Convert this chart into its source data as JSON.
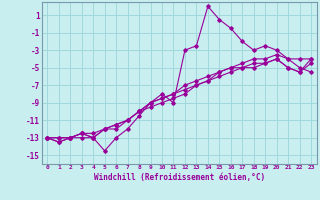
{
  "xlabel": "Windchill (Refroidissement éolien,°C)",
  "background_color": "#c8eef0",
  "grid_color": "#a0d8dc",
  "line_color": "#990099",
  "spine_color": "#7799aa",
  "xlim": [
    -0.5,
    23.5
  ],
  "ylim": [
    -16,
    2.5
  ],
  "yticks": [
    1,
    -1,
    -3,
    -5,
    -7,
    -9,
    -11,
    -13,
    -15
  ],
  "xticks": [
    0,
    1,
    2,
    3,
    4,
    5,
    6,
    7,
    8,
    9,
    10,
    11,
    12,
    13,
    14,
    15,
    16,
    17,
    18,
    19,
    20,
    21,
    22,
    23
  ],
  "series": [
    [
      0,
      1,
      2,
      3,
      4,
      5,
      6,
      7,
      8,
      9,
      10,
      11,
      12,
      13,
      14,
      15,
      16,
      17,
      18,
      19,
      20,
      21,
      22,
      23
    ],
    [
      -13,
      -13.5,
      -13,
      -13,
      -13,
      -14.5,
      -13,
      -12,
      -10.5,
      -9,
      -8,
      -9,
      -3,
      -2.5,
      2,
      0.5,
      -0.5,
      -2,
      -3,
      -2.5,
      -3,
      -4,
      -5,
      -5.5
    ],
    [
      -13,
      -13,
      -13,
      -12.5,
      -12.5,
      -12,
      -12,
      -11,
      -10,
      -9,
      -8.5,
      -8,
      -7,
      -6.5,
      -6,
      -5.5,
      -5,
      -4.5,
      -4,
      -4,
      -3.5,
      -4,
      -4,
      -4
    ],
    [
      -13,
      -13,
      -13,
      -12.5,
      -13,
      -12,
      -11.5,
      -11,
      -10,
      -9,
      -8.5,
      -8,
      -7.5,
      -7,
      -6.5,
      -5.5,
      -5,
      -5,
      -4.5,
      -4.5,
      -4,
      -5,
      -5.5,
      -4.5
    ],
    [
      -13,
      -13.5,
      -13,
      -12.5,
      -13,
      -12,
      -11.5,
      -11,
      -10,
      -9.5,
      -9,
      -8.5,
      -8,
      -7,
      -6.5,
      -6,
      -5.5,
      -5,
      -5,
      -4.5,
      -4,
      -5,
      -5.5,
      -4
    ]
  ]
}
